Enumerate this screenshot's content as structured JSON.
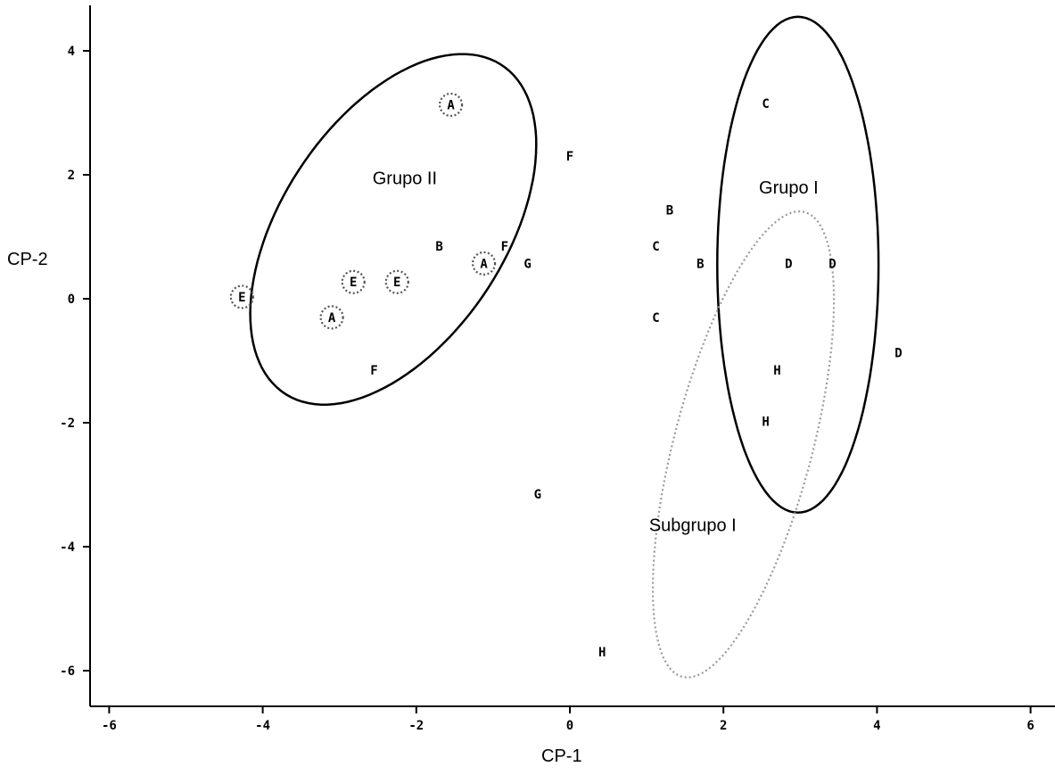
{
  "chart_data": {
    "type": "scatter",
    "xlabel": "CP-1",
    "ylabel": "CP-2",
    "xlim": [
      -6.3,
      6.3
    ],
    "ylim": [
      -6.5,
      4.7
    ],
    "xticks": [
      -6,
      -4,
      -2,
      0,
      2,
      4,
      6
    ],
    "yticks": [
      -6,
      -4,
      -2,
      0,
      2,
      4
    ],
    "xtick_labels": [
      "-6",
      "-4",
      "-2",
      "0",
      "2",
      "4",
      "6"
    ],
    "ytick_labels": [
      "-6",
      "-4",
      "-2",
      "0",
      "2",
      "4"
    ],
    "grid": false,
    "points": [
      {
        "label": "A",
        "x": -1.55,
        "y": 3.13,
        "circled": true
      },
      {
        "label": "F",
        "x": 0.0,
        "y": 2.3,
        "circled": false
      },
      {
        "label": "B",
        "x": -1.7,
        "y": 0.85,
        "circled": false
      },
      {
        "label": "F",
        "x": -0.85,
        "y": 0.85,
        "circled": false
      },
      {
        "label": "A",
        "x": -1.12,
        "y": 0.57,
        "circled": true
      },
      {
        "label": "G",
        "x": -0.55,
        "y": 0.57,
        "circled": false
      },
      {
        "label": "E",
        "x": -2.82,
        "y": 0.27,
        "circled": true
      },
      {
        "label": "E",
        "x": -2.25,
        "y": 0.27,
        "circled": true
      },
      {
        "label": "E",
        "x": -4.27,
        "y": 0.03,
        "circled": true
      },
      {
        "label": "A",
        "x": -3.1,
        "y": -0.3,
        "circled": true
      },
      {
        "label": "F",
        "x": -2.55,
        "y": -1.15,
        "circled": false
      },
      {
        "label": "C",
        "x": 2.55,
        "y": 3.15,
        "circled": false
      },
      {
        "label": "B",
        "x": 1.3,
        "y": 1.43,
        "circled": false
      },
      {
        "label": "C",
        "x": 1.12,
        "y": 0.85,
        "circled": false
      },
      {
        "label": "B",
        "x": 1.7,
        "y": 0.57,
        "circled": false
      },
      {
        "label": "D",
        "x": 2.85,
        "y": 0.57,
        "circled": false
      },
      {
        "label": "D",
        "x": 3.42,
        "y": 0.57,
        "circled": false
      },
      {
        "label": "C",
        "x": 1.12,
        "y": -0.3,
        "circled": false
      },
      {
        "label": "D",
        "x": 4.28,
        "y": -0.87,
        "circled": false
      },
      {
        "label": "H",
        "x": 2.7,
        "y": -1.15,
        "circled": false
      },
      {
        "label": "H",
        "x": 2.55,
        "y": -1.98,
        "circled": false
      },
      {
        "label": "G",
        "x": -0.42,
        "y": -3.15,
        "circled": false
      },
      {
        "label": "H",
        "x": 0.42,
        "y": -5.7,
        "circled": false
      }
    ],
    "groups": [
      {
        "label": "Grupo II",
        "label_x": -2.15,
        "label_y": 1.95,
        "style": "solid",
        "cx": -2.3,
        "cy": 1.12,
        "rx": 4.1,
        "ry": 2.25,
        "angle_deg": 30
      },
      {
        "label": "Grupo I",
        "label_x": 2.85,
        "label_y": 1.8,
        "style": "solid",
        "cx": 2.97,
        "cy": 0.55,
        "rx": 2.1,
        "ry": 4.0,
        "angle_deg": 0
      },
      {
        "label": "Subgrupo I",
        "label_x": 1.6,
        "label_y": -3.65,
        "style": "dotted",
        "cx": 2.26,
        "cy": -2.35,
        "rx": 4.1,
        "ry": 1.7,
        "angle_deg": 64
      }
    ]
  }
}
